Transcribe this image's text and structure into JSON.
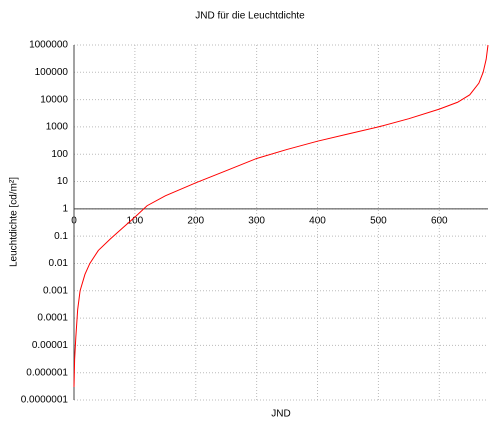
{
  "chart_data": {
    "type": "line",
    "title": "JND für die Leuchtdichte",
    "xlabel": "JND",
    "ylabel": "Leuchtdichte [cd/m²]",
    "x": [
      0,
      1,
      3,
      6,
      10,
      18,
      26,
      40,
      60,
      80,
      100,
      120,
      150,
      200,
      250,
      300,
      350,
      400,
      450,
      500,
      550,
      600,
      630,
      650,
      665,
      672,
      677,
      680
    ],
    "values": [
      3e-07,
      3e-06,
      2e-05,
      0.0002,
      0.001,
      0.004,
      0.01,
      0.03,
      0.08,
      0.2,
      0.5,
      1.3,
      3,
      9,
      25,
      70,
      150,
      300,
      550,
      1000,
      2000,
      4500,
      8000,
      15000,
      40000,
      100000,
      300000,
      1000000
    ],
    "color": "#ff0000",
    "xlim": [
      0,
      680
    ],
    "xticks": [
      0,
      100,
      200,
      300,
      400,
      500,
      600
    ],
    "ylim": [
      1e-07,
      1000000
    ],
    "yscale": "log",
    "yticks": [
      {
        "value": 1e-07,
        "label": "0.0000001"
      },
      1e-06,
      1e-05,
      0.0001,
      0.001,
      0.01,
      0.1,
      1,
      10,
      100,
      1000,
      10000,
      100000,
      1000000
    ],
    "x_axis_crosses": 1,
    "grid": true
  }
}
